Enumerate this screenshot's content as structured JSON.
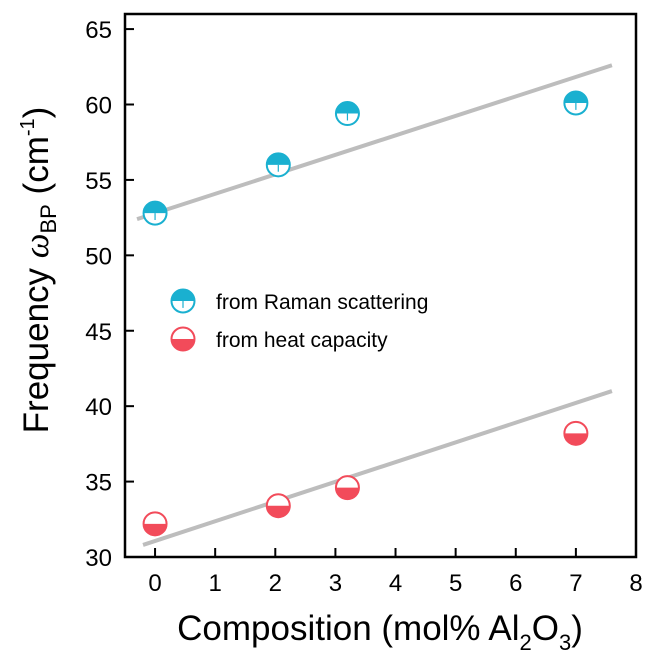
{
  "chart_data": {
    "type": "scatter",
    "xlabel": "Composition (mol% Al",
    "xlabel_sub1": "2",
    "xlabel_mid": "O",
    "xlabel_sub2": "3",
    "xlabel_end": ")",
    "ylabel": "Frequency ",
    "ylabel_symbol": "ω",
    "ylabel_sub": "BP",
    "ylabel_unit": " (cm",
    "ylabel_sup": "-1",
    "ylabel_end": ")",
    "xlim": [
      -0.5,
      8
    ],
    "ylim": [
      30,
      66
    ],
    "xticks": [
      0,
      1,
      2,
      3,
      4,
      5,
      6,
      7,
      8
    ],
    "yticks": [
      30,
      35,
      40,
      45,
      50,
      55,
      60,
      65
    ],
    "legend_position": "middle-left",
    "series": [
      {
        "name": "from Raman scattering",
        "color": "#1ab0d0",
        "fill": "top-half",
        "x": [
          0,
          2.05,
          3.2,
          7
        ],
        "y": [
          52.8,
          56.0,
          59.4,
          60.1
        ]
      },
      {
        "name": "from heat capacity",
        "color": "#f24b5a",
        "fill": "bottom-half",
        "x": [
          0,
          2.05,
          3.2,
          7
        ],
        "y": [
          32.2,
          33.4,
          34.6,
          38.2
        ]
      }
    ],
    "fit_lines": [
      {
        "color": "#bdbdbd",
        "x": [
          -0.3,
          7.6
        ],
        "y": [
          52.4,
          62.6
        ]
      },
      {
        "color": "#bdbdbd",
        "x": [
          -0.2,
          7.6
        ],
        "y": [
          30.8,
          41.0
        ]
      }
    ]
  }
}
